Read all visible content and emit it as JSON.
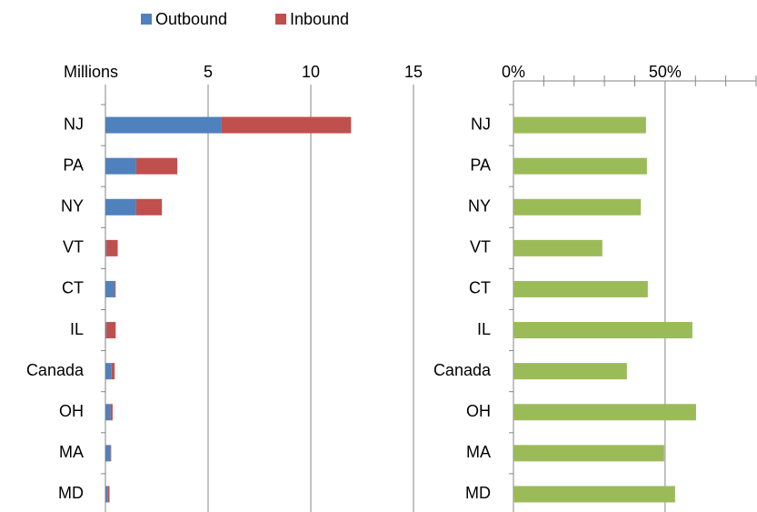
{
  "chart_data": [
    {
      "type": "stacked_barh",
      "x_label": "Millions",
      "categories": [
        "NJ",
        "PA",
        "NY",
        "VT",
        "CT",
        "IL",
        "Canada",
        "OH",
        "MA",
        "MD"
      ],
      "series": [
        {
          "name": "Outbound",
          "color": "#4f81bd",
          "values": [
            5.66,
            1.5,
            1.5,
            0.05,
            0.45,
            0.05,
            0.3,
            0.25,
            0.25,
            0.12
          ]
        },
        {
          "name": "Inbound",
          "color": "#c0504d",
          "values": [
            6.3,
            2.0,
            1.25,
            0.55,
            0.05,
            0.45,
            0.15,
            0.1,
            0.03,
            0.08
          ]
        }
      ],
      "xlim": [
        0,
        15
      ],
      "xticks": [
        5,
        10,
        15
      ],
      "grid": true,
      "legend": "top"
    },
    {
      "type": "barh",
      "categories": [
        "NJ",
        "PA",
        "NY",
        "VT",
        "CT",
        "IL",
        "Canada",
        "OH",
        "MA",
        "MD"
      ],
      "values": [
        43.7,
        44,
        42,
        29.3,
        44.3,
        59,
        37.4,
        60.2,
        49.7,
        53.3
      ],
      "color": "#9bbb59",
      "xlim": [
        0,
        80
      ],
      "xticks": [
        {
          "value": 0,
          "label": "0%"
        },
        {
          "value": 50,
          "label": "50%"
        }
      ],
      "minor_xticks": [
        10,
        20,
        30,
        40,
        60,
        70,
        80
      ],
      "grid": true
    }
  ]
}
